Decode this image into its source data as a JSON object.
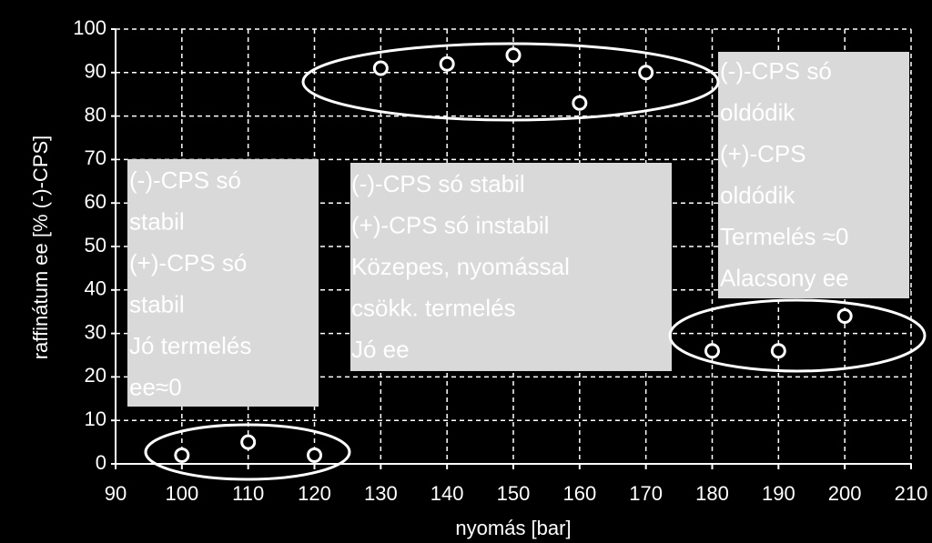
{
  "chart_data": {
    "type": "scatter",
    "x_label": "nyomás [bar]",
    "y_label": "raffinátum ee [% (-)-CPS]",
    "x": [
      100,
      110,
      120,
      130,
      140,
      150,
      160,
      170,
      180,
      190,
      200
    ],
    "values": [
      2,
      5,
      2,
      91,
      92,
      94,
      83,
      90,
      26,
      26,
      34
    ],
    "xlim": [
      90,
      210
    ],
    "xticks": [
      90,
      100,
      110,
      120,
      130,
      140,
      150,
      160,
      170,
      180,
      190,
      200,
      210
    ],
    "ylim": [
      0,
      100
    ],
    "yticks": [
      0,
      10,
      20,
      30,
      40,
      50,
      60,
      70,
      80,
      90,
      100
    ],
    "grid": true,
    "color": "#ffffff",
    "annotations": [
      [
        "(-)-CPS só",
        "stabil",
        "(+)-CPS só",
        "stabil",
        "Jó termelés",
        "ee≈0"
      ],
      [
        "(-)-CPS só stabil",
        "(+)-CPS só instabil",
        "Közepes, nyomással",
        "csökk.  termelés",
        "Jó ee"
      ],
      [
        "(-)-CPS só",
        "oldódik",
        "(+)-CPS",
        "oldódik",
        "Termelés ≈0",
        "Alacsony ee"
      ]
    ]
  }
}
